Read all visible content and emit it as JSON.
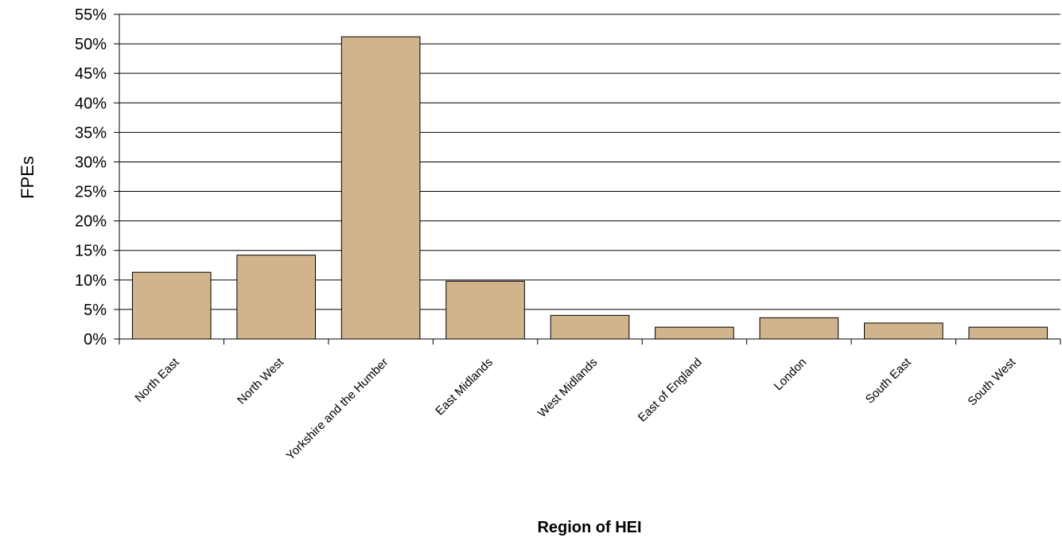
{
  "chart_data": {
    "type": "bar",
    "categories": [
      "North East",
      "North West",
      "Yorkshire and the Humber",
      "East Midlands",
      "West Midlands",
      "East of England",
      "London",
      "South East",
      "South West"
    ],
    "values": [
      11.3,
      14.2,
      51.2,
      9.8,
      4.0,
      2.0,
      3.6,
      2.7,
      2.0
    ],
    "xlabel": "Region of HEI",
    "ylabel": "FPEs",
    "ylim": [
      0,
      55
    ],
    "yticks": [
      0,
      5,
      10,
      15,
      20,
      25,
      30,
      35,
      40,
      45,
      50,
      55
    ],
    "ytick_labels": [
      "0%",
      "5%",
      "10%",
      "15%",
      "20%",
      "25%",
      "30%",
      "35%",
      "40%",
      "45%",
      "50%",
      "55%"
    ],
    "grid": "horizontal",
    "legend": "none",
    "bar_color": "#D2B48C"
  }
}
